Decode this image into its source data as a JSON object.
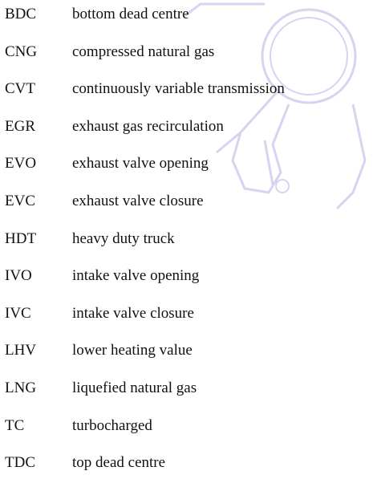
{
  "abbreviations": [
    {
      "abbr": "BDC",
      "definition": "bottom dead centre"
    },
    {
      "abbr": "CNG",
      "definition": "compressed natural gas"
    },
    {
      "abbr": "CVT",
      "definition": "continuously variable transmission"
    },
    {
      "abbr": "EGR",
      "definition": "exhaust gas recirculation"
    },
    {
      "abbr": "EVO",
      "definition": "exhaust valve opening"
    },
    {
      "abbr": "EVC",
      "definition": "exhaust valve closure"
    },
    {
      "abbr": "HDT",
      "definition": "heavy duty truck"
    },
    {
      "abbr": "IVO",
      "definition": "intake valve opening"
    },
    {
      "abbr": "IVC",
      "definition": "intake valve closure"
    },
    {
      "abbr": "LHV",
      "definition": "lower heating value"
    },
    {
      "abbr": "LNG",
      "definition": "liquefied natural gas"
    },
    {
      "abbr": "TC",
      "definition": "turbocharged"
    },
    {
      "abbr": "TDC",
      "definition": "top dead centre"
    }
  ]
}
